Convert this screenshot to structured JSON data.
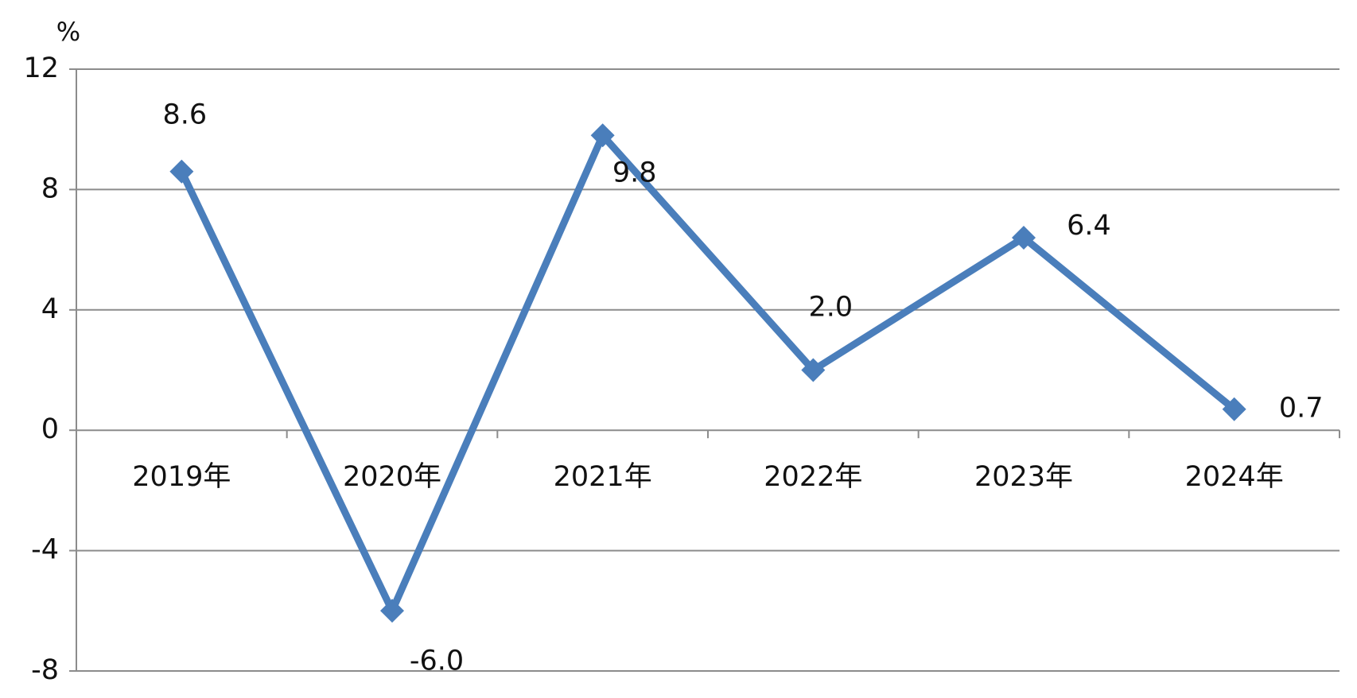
{
  "chart_data": {
    "type": "line",
    "y_label": "%",
    "categories": [
      "2019年",
      "2020年",
      "2021年",
      "2022年",
      "2023年",
      "2024年"
    ],
    "series": [
      {
        "color": "#4a7ebb",
        "values": [
          8.6,
          -6.0,
          9.8,
          2.0,
          6.4,
          0.7
        ],
        "value_labels": [
          "8.6",
          "-6.0",
          "9.8",
          "2.0",
          "6.4",
          "0.7"
        ]
      }
    ],
    "ylim": [
      -8,
      12
    ],
    "yticks": [
      -8,
      -4,
      0,
      4,
      8,
      12
    ],
    "grid": true
  }
}
